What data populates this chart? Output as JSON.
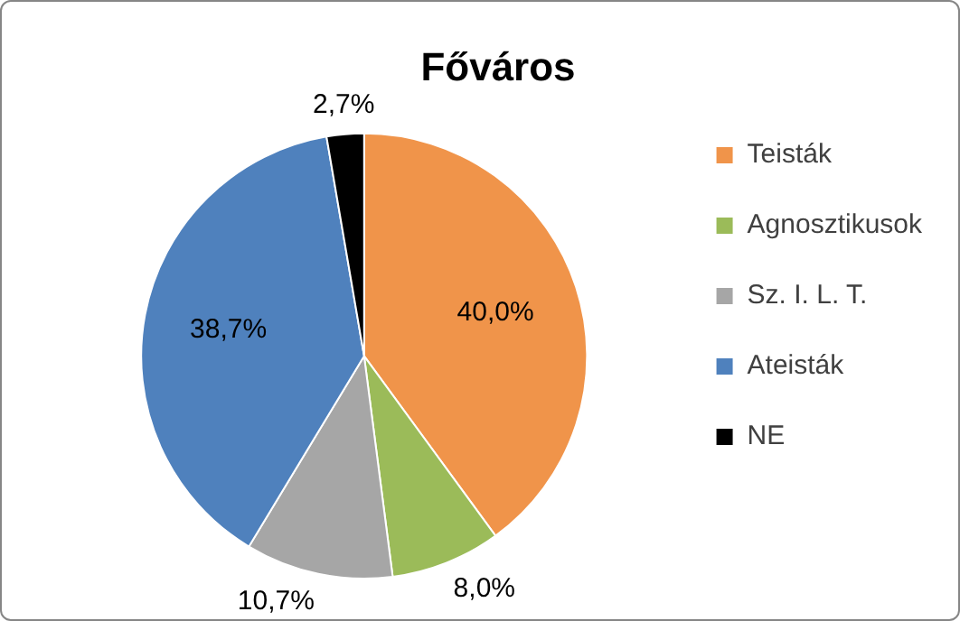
{
  "chart_data": {
    "type": "pie",
    "title": "Főváros",
    "categories": [
      "Teisták",
      "Agnosztikusok",
      "Sz. I. L. T.",
      "Ateisták",
      "NE"
    ],
    "values": [
      40.0,
      8.0,
      10.7,
      38.7,
      2.7
    ],
    "value_labels": [
      "40,0%",
      "8,0%",
      "10,7%",
      "38,7%",
      "2,7%"
    ],
    "colors": [
      "#f0944a",
      "#9bbb59",
      "#a6a6a6",
      "#4f81bd",
      "#000000"
    ],
    "legend": "right"
  }
}
